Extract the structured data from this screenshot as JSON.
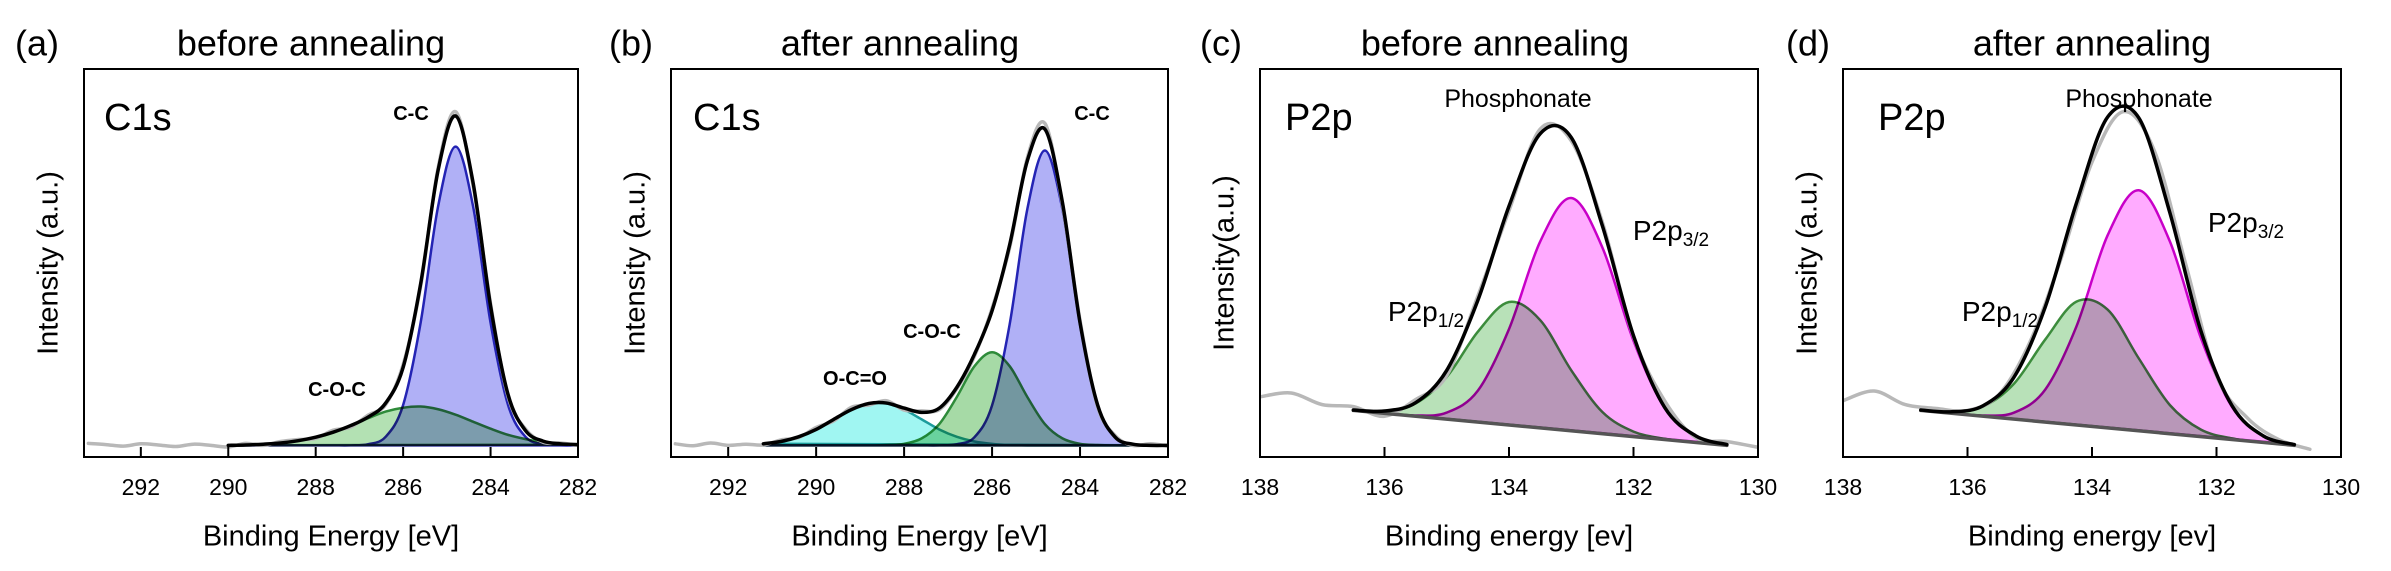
{
  "chart_data": [
    {
      "type": "line",
      "panel_label": "(a)",
      "title": "before annealing",
      "spectrum_label": "C1s",
      "xlabel": "Binding Energy [eV]",
      "ylabel": "Intensity (a.u.)",
      "xlim": [
        293.3,
        282
      ],
      "xticks": [
        292,
        290,
        288,
        286,
        284,
        282
      ],
      "ylim": [
        0,
        100
      ],
      "series": [
        {
          "color": "#2e8b3a",
          "fill": "#a6dca6",
          "x": [
            290,
            289.6,
            289.2,
            288.8,
            288.4,
            288,
            287.6,
            287.2,
            286.8,
            286.4,
            286,
            285.6,
            285.2,
            284.8,
            284.4,
            284,
            283.6,
            283.2,
            282.8,
            282.4,
            282
          ],
          "values": [
            3.0,
            3.1,
            3.3,
            3.6,
            4.2,
            5.1,
            6.4,
            8.1,
            10.0,
            11.7,
            12.7,
            13.0,
            12.3,
            10.9,
            9.1,
            7.3,
            5.7,
            4.6,
            3.8,
            3.4,
            3.2
          ]
        },
        {
          "color": "#2424b4",
          "fill": "#a2a2f4",
          "x": [
            290,
            289.6,
            289.2,
            288.8,
            288.4,
            288,
            287.6,
            287.2,
            286.8,
            286.4,
            286,
            285.6,
            285.2,
            284.8,
            284.4,
            284,
            283.6,
            283.2,
            282.8,
            282.4,
            282
          ],
          "values": [
            3,
            3,
            3,
            3,
            3,
            3,
            3,
            3,
            3.3,
            5.2,
            13.4,
            34.6,
            64.6,
            80,
            64.6,
            34.6,
            13.4,
            5.2,
            3.3,
            3,
            3
          ]
        },
        {
          "color": "#b8b8b8",
          "x": [
            293.2,
            292.8,
            292.4,
            292,
            291.6,
            291.2,
            290.8,
            290.4,
            290,
            289.6,
            289.2,
            288.8,
            288.4,
            288,
            287.6,
            287.2,
            286.8,
            286.4,
            286,
            285.6,
            285.2,
            284.8,
            284.4,
            284,
            283.6,
            283.2,
            282.8,
            282.4,
            282
          ],
          "values": [
            3.5,
            3.2,
            2.8,
            3.4,
            3.1,
            2.7,
            3.3,
            3.0,
            2.6,
            3.5,
            3.0,
            4.0,
            4.5,
            4.8,
            6.9,
            7.7,
            10.8,
            13.5,
            23.8,
            44.0,
            74.5,
            89,
            70,
            39.5,
            15.6,
            7.2,
            3.8,
            3.6,
            3.0
          ]
        },
        {
          "color": "#000000",
          "x": [
            290,
            289.6,
            289.2,
            288.8,
            288.4,
            288,
            287.6,
            287.2,
            286.8,
            286.4,
            286,
            285.6,
            285.2,
            284.8,
            284.4,
            284,
            283.6,
            283.2,
            282.8,
            282.4,
            282
          ],
          "values": [
            3.0,
            3.1,
            3.3,
            3.6,
            4.2,
            5.1,
            6.4,
            8.1,
            10.3,
            13.9,
            23.1,
            44.6,
            73.9,
            87.9,
            70.7,
            38.9,
            16.1,
            6.8,
            4.1,
            3.4,
            3.2
          ]
        }
      ],
      "annotations": [
        {
          "text": "C-C",
          "color": "#000000"
        },
        {
          "text": "C-O-C",
          "color": "#000000"
        }
      ]
    },
    {
      "type": "line",
      "panel_label": "(b)",
      "title": "after annealing",
      "spectrum_label": "C1s",
      "xlabel": "Binding Energy [eV]",
      "ylabel": "Intensity (a.u.)",
      "xlim": [
        293.3,
        282
      ],
      "xticks": [
        292,
        290,
        288,
        286,
        284,
        282
      ],
      "ylim": [
        0,
        100
      ],
      "series": [
        {
          "color": "#1c9c9c",
          "fill": "#8ff5f0",
          "x": [
            291.2,
            290.8,
            290.4,
            290,
            289.6,
            289.2,
            288.8,
            288.4,
            288,
            287.6,
            287.2,
            286.8,
            286.4,
            286,
            285.6,
            285.2,
            284.8,
            284.4,
            284,
            283.6,
            283.2,
            282.8,
            282.4,
            282
          ],
          "values": [
            3.4,
            4.0,
            5.2,
            7.1,
            9.7,
            12.2,
            13.8,
            13.8,
            12.2,
            9.7,
            7.1,
            5.2,
            4.0,
            3.4,
            3.1,
            3.0,
            3,
            3,
            3,
            3,
            3,
            3,
            3,
            3
          ]
        },
        {
          "color": "#2e8b3a",
          "fill": "#96d496",
          "x": [
            291.2,
            290.8,
            290.4,
            290,
            289.6,
            289.2,
            288.8,
            288.4,
            288,
            287.6,
            287.2,
            286.8,
            286.4,
            286,
            285.6,
            285.2,
            284.8,
            284.4,
            284,
            283.6,
            283.2,
            282.8,
            282.4,
            282
          ],
          "values": [
            3,
            3,
            3,
            3,
            3,
            3,
            3,
            3.1,
            3.4,
            4.8,
            8.5,
            15.5,
            23.4,
            27,
            23.4,
            15.5,
            8.5,
            4.8,
            3.4,
            3.1,
            3,
            3,
            3,
            3
          ]
        },
        {
          "color": "#2424b4",
          "fill": "#a2a2f4",
          "x": [
            291.2,
            290.8,
            290.4,
            290,
            289.6,
            289.2,
            288.8,
            288.4,
            288,
            287.6,
            287.2,
            286.8,
            286.4,
            286,
            285.6,
            285.2,
            284.8,
            284.4,
            284,
            283.6,
            283.2,
            282.8,
            282.4,
            282
          ],
          "values": [
            3,
            3,
            3,
            3,
            3,
            3,
            3,
            3,
            3,
            3,
            3,
            3.3,
            5.1,
            13.3,
            34.2,
            63.8,
            79,
            63.8,
            34.2,
            13.3,
            5.1,
            3.3,
            3,
            3
          ]
        },
        {
          "color": "#b8b8b8",
          "x": [
            293.2,
            292.8,
            292.4,
            292,
            291.6,
            291.2,
            290.8,
            290.4,
            290,
            289.6,
            289.2,
            288.8,
            288.4,
            288,
            287.6,
            287.2,
            286.8,
            286.4,
            286,
            285.6,
            285.2,
            284.8,
            284.4,
            284,
            283.6,
            283.2,
            282.8,
            282.4,
            282
          ],
          "values": [
            3.4,
            2.9,
            3.6,
            3.0,
            3.3,
            3.1,
            4.4,
            5.0,
            7.6,
            9.3,
            12.8,
            13.4,
            14.5,
            12.1,
            11.9,
            12.2,
            17.6,
            26.0,
            38.3,
            54.0,
            77.0,
            86,
            65.0,
            35.2,
            13.0,
            5.5,
            3.0,
            3.4,
            2.8
          ]
        },
        {
          "color": "#000000",
          "x": [
            291.2,
            290.8,
            290.4,
            290,
            289.6,
            289.2,
            288.8,
            288.4,
            288,
            287.6,
            287.2,
            286.8,
            286.4,
            286,
            285.6,
            285.2,
            284.8,
            284.4,
            284,
            283.6,
            283.2,
            282.8,
            282.4,
            282
          ],
          "values": [
            3.4,
            4.0,
            5.2,
            7.1,
            9.7,
            12.2,
            13.8,
            13.9,
            12.6,
            11.5,
            12.6,
            18.0,
            26.5,
            37.7,
            54.7,
            76.3,
            84.5,
            65.6,
            34.6,
            13.4,
            5.1,
            3.3,
            3,
            3
          ]
        }
      ],
      "annotations": [
        {
          "text": "C-C",
          "color": "#000000"
        },
        {
          "text": "C-O-C",
          "color": "#000000"
        },
        {
          "text": "O-C=O",
          "color": "#000000"
        }
      ]
    },
    {
      "type": "line",
      "panel_label": "(c)",
      "title": "before annealing",
      "spectrum_label": "P2p",
      "xlabel": "Binding energy [ev]",
      "ylabel": "Intensity(a.u.)",
      "xlim": [
        138,
        130
      ],
      "xticks": [
        138,
        136,
        134,
        132,
        130
      ],
      "ylim": [
        0,
        100
      ],
      "series": [
        {
          "color": "#3c8c3c",
          "fill": "#abdcab",
          "x": [
            136.5,
            136,
            135.5,
            135,
            134.5,
            134,
            133.5,
            133,
            132.5,
            132,
            131.5,
            131,
            130.5
          ],
          "values": [
            12.1,
            11.85,
            13.8,
            20.65,
            32.3,
            39.95,
            35.3,
            22.35,
            11.6,
            6.55,
            4.7,
            3.75,
            3
          ]
        },
        {
          "color": "#c800c8",
          "fill": "#ff9cff",
          "x": [
            136.5,
            136,
            135.5,
            135,
            134.5,
            134,
            133.5,
            133,
            132.5,
            132,
            131.5,
            131,
            130.5
          ],
          "values": [
            12,
            11.25,
            10.7,
            11.45,
            17.1,
            32.95,
            55.5,
            66.75,
            54,
            29.95,
            12.6,
            5.45,
            3.2
          ]
        },
        {
          "color": "#b8b8b8",
          "x": [
            138,
            137.5,
            137,
            136.5,
            136,
            135.5,
            135,
            134.5,
            134,
            133.5,
            133,
            132.5,
            132,
            131.5,
            131,
            130.5,
            130
          ],
          "values": [
            15.5,
            16.5,
            13.5,
            13.0,
            10.5,
            14.8,
            21.0,
            41.5,
            63.5,
            84.5,
            81.5,
            60.5,
            31.0,
            14.5,
            5.0,
            4.0,
            2.5
          ]
        },
        {
          "color": "#555555",
          "x": [
            136.5,
            130.5
          ],
          "values": [
            12,
            3
          ]
        },
        {
          "color": "#000000",
          "x": [
            136.5,
            136,
            135.5,
            135,
            134.5,
            134,
            133.5,
            133,
            132.5,
            132,
            131.5,
            131,
            130.5
          ],
          "values": [
            12.1,
            11.85,
            14.0,
            22.35,
            40.4,
            64.65,
            83.3,
            82.35,
            59.6,
            31.25,
            12.8,
            5.45,
            3.2
          ]
        }
      ],
      "annotations": [
        {
          "text": "Phosphonate",
          "color": "#000000"
        },
        {
          "text": "P2p",
          "subscript": "1/2",
          "color": "#2a9a2a"
        },
        {
          "text": "P2p",
          "subscript": "3/2",
          "color": "#b000b0"
        }
      ]
    },
    {
      "type": "line",
      "panel_label": "(d)",
      "title": "after annealing",
      "spectrum_label": "P2p",
      "xlabel": "Binding energy [ev]",
      "ylabel": "Intensity (a.u.)",
      "xlim": [
        138,
        130
      ],
      "xticks": [
        138,
        136,
        134,
        132,
        130
      ],
      "ylim": [
        0,
        100
      ],
      "series": [
        {
          "color": "#3c8c3c",
          "fill": "#abdcab",
          "x": [
            136.75,
            136.25,
            135.75,
            135.25,
            134.75,
            134.25,
            133.75,
            133.25,
            132.75,
            132.25,
            131.75,
            131.25,
            130.75
          ],
          "values": [
            12.1,
            11.65,
            13.0,
            18.95,
            30.3,
            40.05,
            38.0,
            25.45,
            13.4,
            7.05,
            4.8,
            3.75,
            3
          ]
        },
        {
          "color": "#c800c8",
          "fill": "#ff9cff",
          "x": [
            136.75,
            136.25,
            135.75,
            135.25,
            134.75,
            134.25,
            133.75,
            133.25,
            132.75,
            132.25,
            131.75,
            131.25,
            130.75
          ],
          "values": [
            12,
            11.25,
            10.7,
            11.45,
            17.4,
            33.65,
            57.1,
            68.75,
            55.6,
            30.65,
            12.9,
            5.45,
            3.2
          ]
        },
        {
          "color": "#b8b8b8",
          "x": [
            138,
            137.5,
            137,
            136.5,
            136,
            135.5,
            135,
            134.5,
            134,
            133.5,
            133,
            132.5,
            132,
            131.5,
            131,
            130.5
          ],
          "values": [
            14.5,
            17,
            13.5,
            12.5,
            12.0,
            16.0,
            29.5,
            51,
            76,
            89,
            79,
            50,
            21,
            10,
            4.5,
            2.0
          ]
        },
        {
          "color": "#555555",
          "x": [
            136.75,
            130.75
          ],
          "values": [
            12,
            3
          ]
        },
        {
          "color": "#000000",
          "x": [
            136.75,
            136.25,
            135.75,
            135.25,
            134.75,
            134.25,
            133.75,
            133.25,
            132.75,
            132.25,
            131.75,
            131.25,
            130.75
          ],
          "values": [
            12.1,
            11.65,
            13.2,
            20.65,
            38.7,
            65.45,
            87.6,
            87.45,
            63.0,
            32.45,
            13.2,
            5.45,
            3.2
          ]
        }
      ],
      "annotations": [
        {
          "text": "Phosphonate",
          "color": "#000000"
        },
        {
          "text": "P2p",
          "subscript": "1/2",
          "color": "#2a9a2a"
        },
        {
          "text": "P2p",
          "subscript": "3/2",
          "color": "#b000b0"
        }
      ]
    }
  ]
}
